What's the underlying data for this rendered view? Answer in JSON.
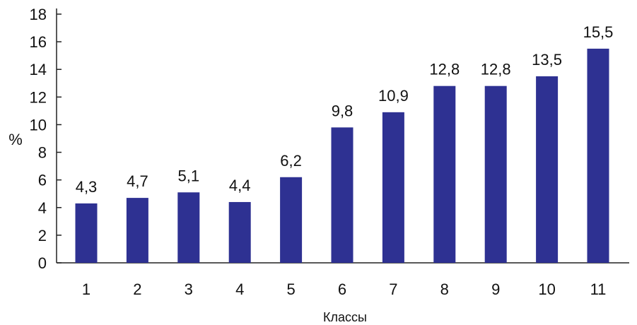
{
  "chart_data": {
    "type": "bar",
    "categories": [
      "1",
      "2",
      "3",
      "4",
      "5",
      "6",
      "7",
      "8",
      "9",
      "10",
      "11"
    ],
    "values": [
      4.3,
      4.7,
      5.1,
      4.4,
      6.2,
      9.8,
      10.9,
      12.8,
      12.8,
      13.5,
      15.5
    ],
    "data_labels": [
      "4,3",
      "4,7",
      "5,1",
      "4,4",
      "6,2",
      "9,8",
      "10,9",
      "12,8",
      "12,8",
      "13,5",
      "15,5"
    ],
    "y_ticks": [
      0,
      2,
      4,
      6,
      8,
      10,
      12,
      14,
      16,
      18
    ],
    "ylim": [
      0,
      18
    ],
    "xlabel": "Классы",
    "ylabel": "%",
    "bar_color": "#2e3192",
    "grid": false,
    "legend": "none"
  }
}
